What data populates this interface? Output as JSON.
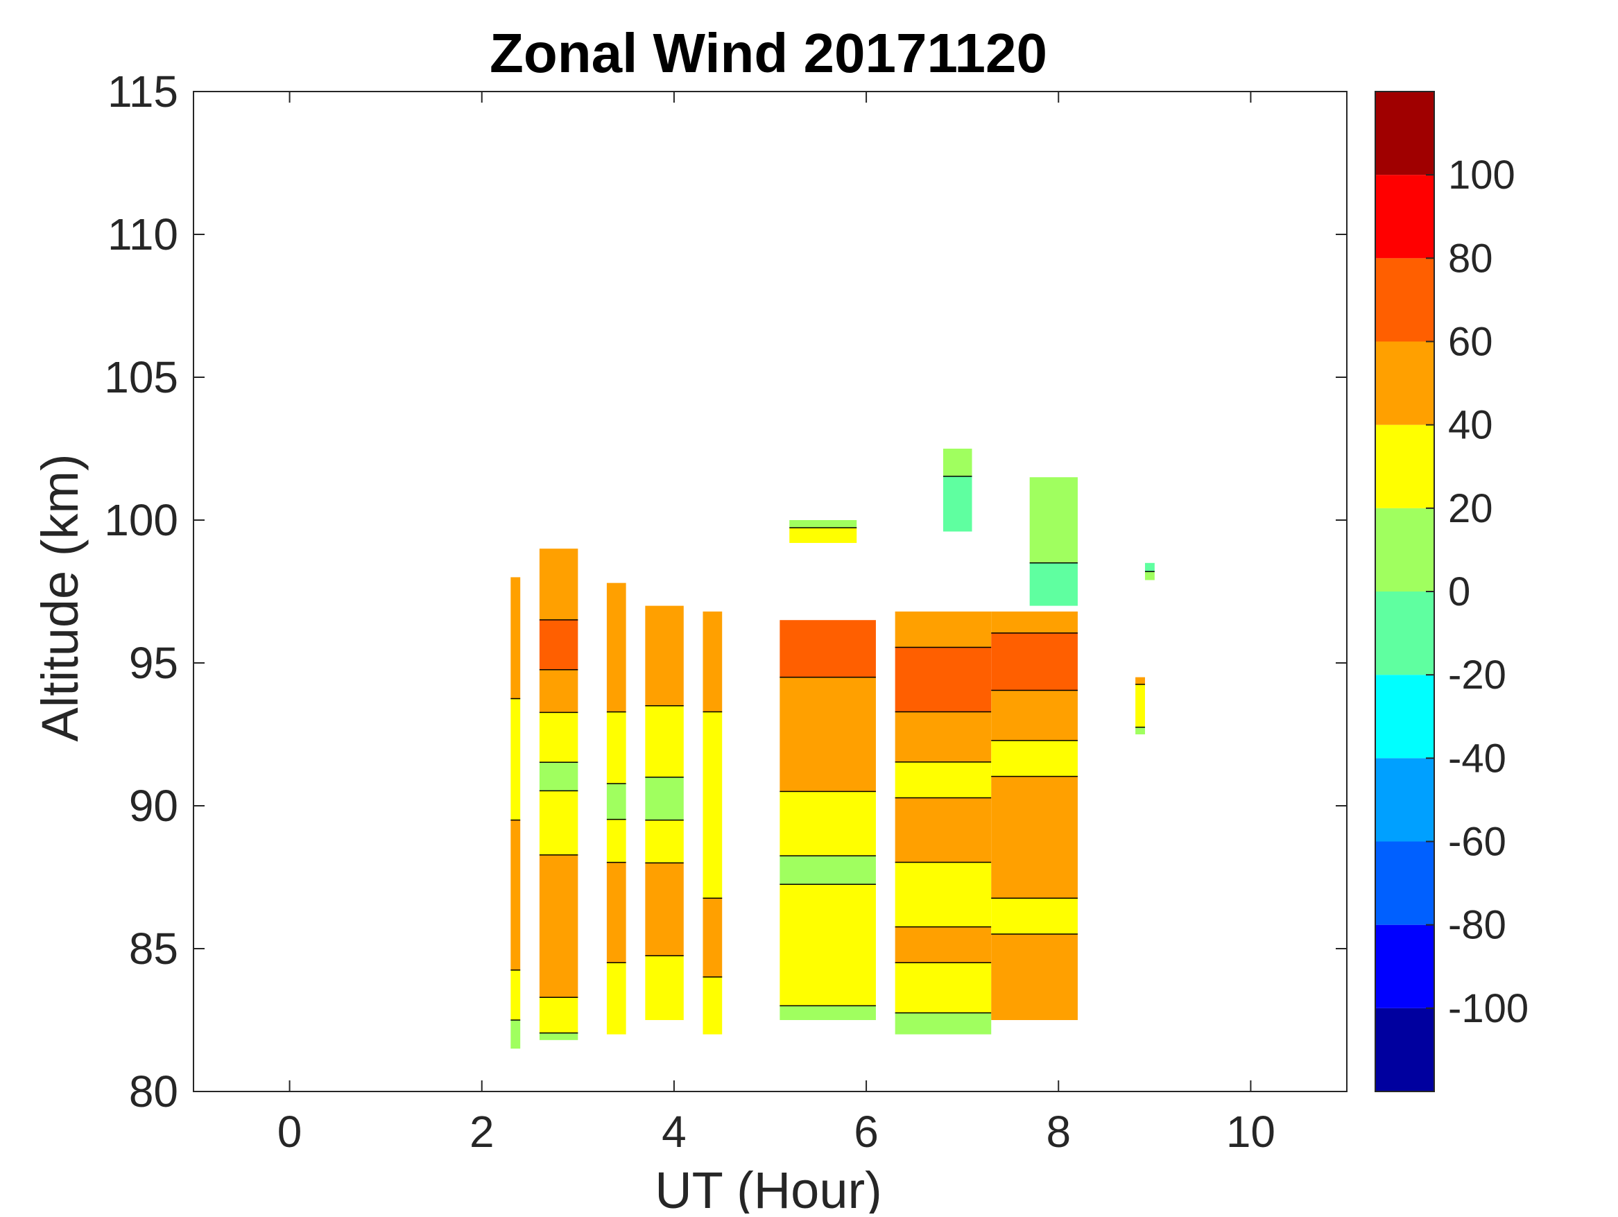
{
  "chart_data": {
    "type": "heatmap",
    "title": "Zonal Wind 20171120",
    "xlabel": "UT (Hour)",
    "ylabel": "Altitude (km)",
    "xlim": [
      -1,
      11
    ],
    "ylim": [
      80,
      115
    ],
    "x_ticks": [
      "0",
      "2",
      "4",
      "6",
      "8",
      "10"
    ],
    "x_tick_values": [
      0,
      2,
      4,
      6,
      8,
      10
    ],
    "y_ticks": [
      "80",
      "85",
      "90",
      "95",
      "100",
      "105",
      "110",
      "115"
    ],
    "y_tick_values": [
      80,
      85,
      90,
      95,
      100,
      105,
      110,
      115
    ],
    "grid": false,
    "colorbar": {
      "range": [
        -120,
        120
      ],
      "step": 20,
      "tick_values": [
        100,
        80,
        60,
        40,
        20,
        0,
        -20,
        -40,
        -60,
        -80,
        -100
      ],
      "tick_labels": [
        "100",
        "80",
        "60",
        "40",
        "20",
        "0",
        "-20",
        "-40",
        "-60",
        "-80",
        "-100"
      ],
      "level_colors": [
        "#00009f",
        "#0000ff",
        "#0060ff",
        "#00a0ff",
        "#00ffff",
        "#5fffa0",
        "#a0ff5f",
        "#ffff00",
        "#ffa000",
        "#ff5f00",
        "#ff0000",
        "#a00000"
      ]
    },
    "columns": [
      {
        "x0": 2.3,
        "x1": 2.4,
        "alt": [
          81.5,
          98
        ],
        "profile": [
          [
            81.5,
            10
          ],
          [
            83,
            25
          ],
          [
            85,
            50
          ],
          [
            88,
            50
          ],
          [
            91,
            30
          ],
          [
            93,
            25
          ],
          [
            95,
            60
          ],
          [
            98,
            45
          ]
        ]
      },
      {
        "x0": 2.6,
        "x1": 3.0,
        "alt": [
          81.8,
          99
        ],
        "profile": [
          [
            81.8,
            15
          ],
          [
            83,
            35
          ],
          [
            85,
            60
          ],
          [
            87,
            50
          ],
          [
            89,
            35
          ],
          [
            91,
            15
          ],
          [
            93,
            35
          ],
          [
            95,
            65
          ],
          [
            98,
            55
          ]
        ]
      },
      {
        "x0": 3.3,
        "x1": 3.5,
        "alt": [
          82,
          97.8
        ],
        "profile": [
          [
            82,
            30
          ],
          [
            84,
            35
          ],
          [
            86,
            55
          ],
          [
            88,
            40
          ],
          [
            90,
            15
          ],
          [
            92,
            30
          ],
          [
            94,
            45
          ],
          [
            96,
            60
          ],
          [
            97.8,
            45
          ]
        ]
      },
      {
        "x0": 3.7,
        "x1": 4.1,
        "alt": [
          82.5,
          97
        ],
        "profile": [
          [
            82.5,
            40
          ],
          [
            84,
            30
          ],
          [
            86,
            60
          ],
          [
            88,
            40
          ],
          [
            90,
            15
          ],
          [
            92,
            25
          ],
          [
            94,
            45
          ],
          [
            96,
            55
          ],
          [
            97,
            45
          ]
        ]
      },
      {
        "x0": 4.3,
        "x1": 4.5,
        "alt": [
          82,
          96.8
        ],
        "profile": [
          [
            82,
            30
          ],
          [
            84,
            40
          ],
          [
            86,
            45
          ],
          [
            88,
            30
          ],
          [
            90,
            20
          ],
          [
            92,
            30
          ],
          [
            94,
            45
          ],
          [
            96,
            55
          ],
          [
            96.8,
            45
          ]
        ]
      },
      {
        "x0": 5.1,
        "x1": 6.1,
        "alt": [
          82.5,
          96.5
        ],
        "profile": [
          [
            82.5,
            15
          ],
          [
            84,
            30
          ],
          [
            86,
            35
          ],
          [
            87.5,
            15
          ],
          [
            89,
            25
          ],
          [
            91,
            45
          ],
          [
            93,
            45
          ],
          [
            95,
            65
          ],
          [
            96.5,
            60
          ]
        ]
      },
      {
        "x0": 6.3,
        "x1": 7.3,
        "alt": [
          82,
          96.8
        ],
        "profile": [
          [
            82,
            15
          ],
          [
            83.5,
            25
          ],
          [
            85,
            45
          ],
          [
            87,
            30
          ],
          [
            89,
            50
          ],
          [
            91,
            35
          ],
          [
            93,
            55
          ],
          [
            94.5,
            75
          ],
          [
            96,
            55
          ]
        ]
      },
      {
        "x0": 7.3,
        "x1": 8.2,
        "alt": [
          82.5,
          96.8
        ],
        "profile": [
          [
            82.5,
            45
          ],
          [
            84,
            55
          ],
          [
            86,
            35
          ],
          [
            88,
            50
          ],
          [
            90,
            45
          ],
          [
            92,
            35
          ],
          [
            94,
            60
          ],
          [
            95.5,
            65
          ],
          [
            96.8,
            50
          ]
        ]
      },
      {
        "x0": 8.8,
        "x1": 8.9,
        "alt": [
          92.5,
          94.5
        ],
        "profile": [
          [
            92.5,
            15
          ],
          [
            93.5,
            30
          ],
          [
            94.5,
            45
          ]
        ]
      },
      {
        "x0": 5.2,
        "x1": 5.9,
        "alt": [
          99.2,
          100
        ],
        "profile": [
          [
            99.2,
            30
          ],
          [
            100,
            15
          ]
        ]
      },
      {
        "x0": 6.8,
        "x1": 7.1,
        "alt": [
          99.6,
          102.5
        ],
        "profile": [
          [
            99.6,
            -10
          ],
          [
            101,
            -5
          ],
          [
            102.5,
            10
          ]
        ]
      },
      {
        "x0": 7.7,
        "x1": 8.2,
        "alt": [
          97,
          101.5
        ],
        "profile": [
          [
            97,
            -5
          ],
          [
            98.5,
            0
          ],
          [
            100,
            10
          ],
          [
            101.5,
            15
          ]
        ]
      },
      {
        "x0": 8.9,
        "x1": 9.0,
        "alt": [
          97.9,
          98.5
        ],
        "profile": [
          [
            97.9,
            5
          ],
          [
            98.5,
            -10
          ]
        ]
      }
    ]
  }
}
